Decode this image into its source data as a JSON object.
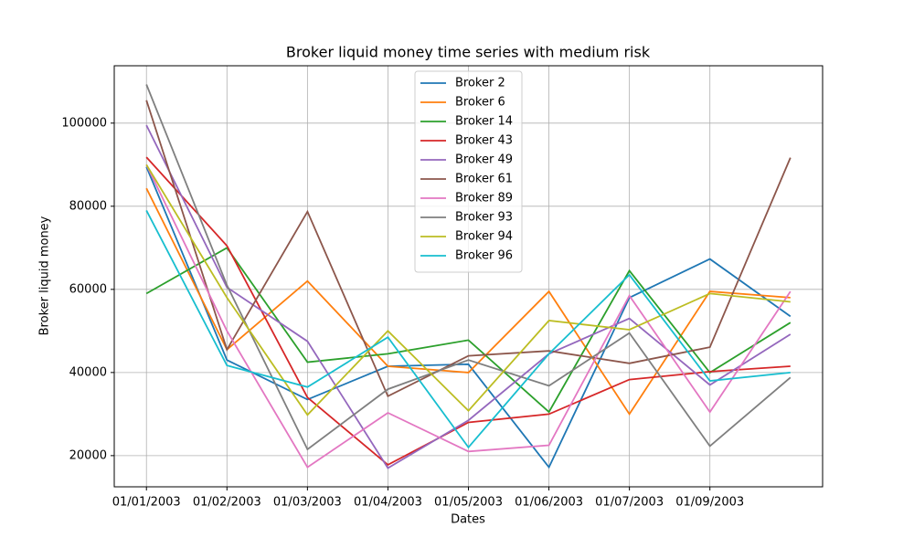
{
  "chart_data": {
    "type": "line",
    "title": "Broker liquid money time series with medium risk",
    "x_label": "Dates",
    "y_label": "Broker liquid money",
    "categories": [
      "01/01/2003",
      "01/02/2003",
      "01/03/2003",
      "01/04/2003",
      "01/05/2003",
      "01/06/2003",
      "01/07/2003",
      "01/09/2003",
      null
    ],
    "series": [
      {
        "name": "Broker 2",
        "color": "#1f77b4",
        "values": [
          89500,
          43000,
          33500,
          41500,
          42000,
          17200,
          58000,
          67300,
          53500
        ]
      },
      {
        "name": "Broker 6",
        "color": "#ff7f0e",
        "values": [
          84300,
          45500,
          62000,
          41500,
          40000,
          59500,
          30000,
          59500,
          58000
        ]
      },
      {
        "name": "Broker 14",
        "color": "#2ca02c",
        "values": [
          59000,
          70000,
          42500,
          44500,
          47800,
          30500,
          64500,
          40000,
          52000
        ]
      },
      {
        "name": "Broker 43",
        "color": "#d62728",
        "values": [
          91800,
          70500,
          34000,
          17800,
          28000,
          30000,
          38300,
          40200,
          41500
        ]
      },
      {
        "name": "Broker 49",
        "color": "#9467bd",
        "values": [
          99500,
          60500,
          47500,
          17000,
          28500,
          44500,
          53000,
          37000,
          49200
        ]
      },
      {
        "name": "Broker 61",
        "color": "#8c564b",
        "values": [
          105500,
          45500,
          78700,
          34300,
          44000,
          45200,
          42200,
          46100,
          91700
        ]
      },
      {
        "name": "Broker 89",
        "color": "#e377c2",
        "values": [
          90000,
          50000,
          17200,
          30300,
          21000,
          22500,
          58500,
          30500,
          59500
        ]
      },
      {
        "name": "Broker 93",
        "color": "#7f7f7f",
        "values": [
          109300,
          61000,
          21500,
          36000,
          43000,
          36800,
          49500,
          22300,
          38800
        ]
      },
      {
        "name": "Broker 94",
        "color": "#bcbd22",
        "values": [
          90000,
          58000,
          29800,
          50000,
          30800,
          52500,
          50300,
          59000,
          57000
        ]
      },
      {
        "name": "Broker 96",
        "color": "#17becf",
        "values": [
          79000,
          41700,
          36500,
          48500,
          22000,
          44500,
          63500,
          38000,
          40000
        ]
      }
    ],
    "ylim": [
      12500,
      113800
    ],
    "yticks": [
      20000,
      40000,
      60000,
      80000,
      100000
    ],
    "grid": true,
    "legend": "upper center"
  }
}
